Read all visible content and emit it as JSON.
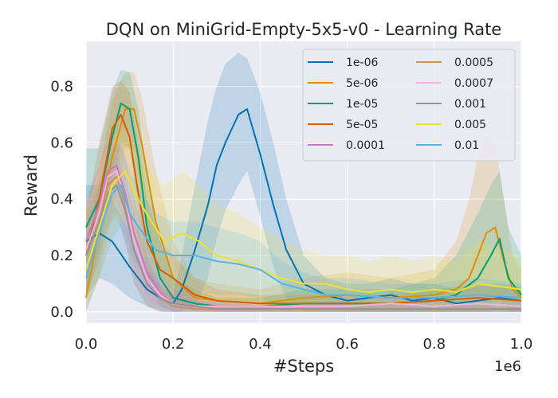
{
  "chart_data": {
    "type": "line",
    "title": "DQN on MiniGrid-Empty-5x5-v0 - Learning Rate",
    "xlabel": "#Steps",
    "ylabel": "Reward",
    "x_scale_label": "1e6",
    "xlim": [
      0,
      1.0
    ],
    "ylim": [
      -0.04,
      0.96
    ],
    "xticks": [
      0.0,
      0.2,
      0.4,
      0.6,
      0.8,
      1.0
    ],
    "xtick_labels": [
      "0.0",
      "0.2",
      "0.4",
      "0.6",
      "0.8",
      "1.0"
    ],
    "yticks": [
      0.0,
      0.2,
      0.4,
      0.6,
      0.8
    ],
    "ytick_labels": [
      "0.0",
      "0.2",
      "0.4",
      "0.6",
      "0.8"
    ],
    "grid": true,
    "legend_position": "top-right",
    "series": [
      {
        "name": "1e-06",
        "color": "#0173b2",
        "x": [
          0,
          0.03,
          0.06,
          0.1,
          0.14,
          0.18,
          0.2,
          0.22,
          0.25,
          0.28,
          0.3,
          0.32,
          0.35,
          0.37,
          0.4,
          0.43,
          0.46,
          0.5,
          0.55,
          0.6,
          0.65,
          0.7,
          0.75,
          0.8,
          0.85,
          0.9,
          0.95,
          1.0
        ],
        "y": [
          0.25,
          0.28,
          0.25,
          0.16,
          0.08,
          0.04,
          0.03,
          0.08,
          0.22,
          0.38,
          0.52,
          0.6,
          0.7,
          0.72,
          0.56,
          0.38,
          0.22,
          0.1,
          0.06,
          0.04,
          0.05,
          0.06,
          0.04,
          0.05,
          0.03,
          0.04,
          0.05,
          0.04
        ],
        "upper": [
          0.45,
          0.45,
          0.4,
          0.28,
          0.15,
          0.08,
          0.06,
          0.2,
          0.45,
          0.68,
          0.8,
          0.88,
          0.92,
          0.9,
          0.78,
          0.6,
          0.4,
          0.2,
          0.12,
          0.1,
          0.1,
          0.12,
          0.1,
          0.1,
          0.08,
          0.09,
          0.1,
          0.09
        ],
        "lower": [
          0.05,
          0.12,
          0.1,
          0.05,
          0.02,
          0.0,
          0.0,
          0.0,
          0.02,
          0.12,
          0.26,
          0.36,
          0.45,
          0.5,
          0.34,
          0.16,
          0.05,
          0.0,
          0.0,
          0.0,
          0.0,
          0.0,
          0.0,
          0.0,
          0.0,
          0.0,
          0.0,
          0.0
        ]
      },
      {
        "name": "5e-06",
        "color": "#de8f05",
        "x": [
          0,
          0.03,
          0.06,
          0.09,
          0.11,
          0.13,
          0.16,
          0.2,
          0.25,
          0.3,
          0.4,
          0.5,
          0.6,
          0.7,
          0.8,
          0.85,
          0.88,
          0.9,
          0.92,
          0.94,
          0.96,
          0.98,
          1.0
        ],
        "y": [
          0.05,
          0.3,
          0.55,
          0.72,
          0.72,
          0.58,
          0.32,
          0.12,
          0.05,
          0.04,
          0.03,
          0.05,
          0.06,
          0.05,
          0.06,
          0.08,
          0.12,
          0.2,
          0.28,
          0.3,
          0.18,
          0.08,
          0.05
        ],
        "upper": [
          0.15,
          0.5,
          0.75,
          0.85,
          0.85,
          0.75,
          0.5,
          0.25,
          0.12,
          0.1,
          0.08,
          0.12,
          0.14,
          0.12,
          0.15,
          0.25,
          0.4,
          0.55,
          0.62,
          0.6,
          0.4,
          0.2,
          0.15
        ],
        "lower": [
          0.0,
          0.12,
          0.35,
          0.58,
          0.58,
          0.4,
          0.15,
          0.03,
          0.0,
          0.0,
          0.0,
          0.0,
          0.0,
          0.0,
          0.0,
          0.0,
          0.0,
          0.0,
          0.0,
          0.05,
          0.0,
          0.0,
          0.0
        ]
      },
      {
        "name": "1e-05",
        "color": "#029e73",
        "x": [
          0,
          0.03,
          0.06,
          0.08,
          0.1,
          0.12,
          0.14,
          0.17,
          0.2,
          0.25,
          0.3,
          0.4,
          0.5,
          0.6,
          0.7,
          0.8,
          0.85,
          0.9,
          0.93,
          0.95,
          0.97,
          1.0
        ],
        "y": [
          0.3,
          0.4,
          0.62,
          0.74,
          0.72,
          0.55,
          0.3,
          0.12,
          0.05,
          0.03,
          0.02,
          0.02,
          0.03,
          0.03,
          0.03,
          0.04,
          0.06,
          0.12,
          0.2,
          0.26,
          0.12,
          0.06
        ],
        "upper": [
          0.58,
          0.58,
          0.78,
          0.86,
          0.85,
          0.72,
          0.48,
          0.25,
          0.12,
          0.08,
          0.05,
          0.05,
          0.08,
          0.08,
          0.08,
          0.12,
          0.2,
          0.35,
          0.45,
          0.5,
          0.3,
          0.2
        ],
        "lower": [
          0.05,
          0.22,
          0.45,
          0.6,
          0.58,
          0.38,
          0.12,
          0.02,
          0.0,
          0.0,
          0.0,
          0.0,
          0.0,
          0.0,
          0.0,
          0.0,
          0.0,
          0.0,
          0.0,
          0.05,
          0.0,
          0.0
        ]
      },
      {
        "name": "5e-05",
        "color": "#d55e00",
        "x": [
          0,
          0.03,
          0.06,
          0.08,
          0.1,
          0.12,
          0.14,
          0.17,
          0.2,
          0.25,
          0.3,
          0.4,
          0.5,
          0.6,
          0.7,
          0.8,
          0.9,
          1.0
        ],
        "y": [
          0.2,
          0.4,
          0.65,
          0.7,
          0.62,
          0.42,
          0.25,
          0.15,
          0.12,
          0.06,
          0.04,
          0.03,
          0.03,
          0.03,
          0.03,
          0.04,
          0.05,
          0.04
        ],
        "upper": [
          0.35,
          0.6,
          0.8,
          0.82,
          0.78,
          0.6,
          0.4,
          0.25,
          0.2,
          0.12,
          0.08,
          0.06,
          0.06,
          0.06,
          0.06,
          0.08,
          0.1,
          0.08
        ],
        "lower": [
          0.05,
          0.22,
          0.48,
          0.55,
          0.45,
          0.25,
          0.12,
          0.06,
          0.04,
          0.01,
          0.0,
          0.0,
          0.0,
          0.0,
          0.0,
          0.0,
          0.0,
          0.0
        ]
      },
      {
        "name": "0.0001",
        "color": "#cc78bc",
        "x": [
          0,
          0.03,
          0.05,
          0.07,
          0.09,
          0.11,
          0.14,
          0.17,
          0.2,
          0.25,
          0.3,
          0.4,
          0.5,
          0.6,
          0.7,
          0.8,
          0.9,
          1.0
        ],
        "y": [
          0.25,
          0.38,
          0.5,
          0.52,
          0.42,
          0.28,
          0.14,
          0.07,
          0.03,
          0.02,
          0.01,
          0.01,
          0.01,
          0.01,
          0.01,
          0.01,
          0.01,
          0.01
        ],
        "upper": [
          0.4,
          0.52,
          0.62,
          0.62,
          0.55,
          0.4,
          0.25,
          0.14,
          0.08,
          0.05,
          0.03,
          0.02,
          0.02,
          0.02,
          0.02,
          0.02,
          0.02,
          0.02
        ],
        "lower": [
          0.1,
          0.25,
          0.38,
          0.4,
          0.3,
          0.16,
          0.05,
          0.02,
          0.0,
          0.0,
          0.0,
          0.0,
          0.0,
          0.0,
          0.0,
          0.0,
          0.0,
          0.0
        ]
      },
      {
        "name": "0.0005",
        "color": "#ca9161",
        "x": [
          0,
          0.03,
          0.05,
          0.07,
          0.09,
          0.11,
          0.14,
          0.17,
          0.2,
          0.25,
          0.3,
          0.4,
          0.5,
          0.6,
          0.7,
          0.8,
          0.9,
          1.0
        ],
        "y": [
          0.2,
          0.32,
          0.45,
          0.48,
          0.38,
          0.22,
          0.1,
          0.05,
          0.02,
          0.01,
          0.01,
          0.01,
          0.01,
          0.01,
          0.01,
          0.01,
          0.01,
          0.01
        ],
        "upper": [
          0.35,
          0.48,
          0.58,
          0.6,
          0.5,
          0.35,
          0.2,
          0.1,
          0.05,
          0.03,
          0.02,
          0.02,
          0.02,
          0.02,
          0.02,
          0.02,
          0.02,
          0.02
        ],
        "lower": [
          0.05,
          0.18,
          0.32,
          0.35,
          0.25,
          0.1,
          0.02,
          0.0,
          0.0,
          0.0,
          0.0,
          0.0,
          0.0,
          0.0,
          0.0,
          0.0,
          0.0,
          0.0
        ]
      },
      {
        "name": "0.0007",
        "color": "#fbafe4",
        "x": [
          0,
          0.03,
          0.05,
          0.07,
          0.09,
          0.11,
          0.14,
          0.17,
          0.2,
          0.25,
          0.3,
          0.4,
          0.5,
          0.6,
          0.7,
          0.8,
          0.9,
          1.0
        ],
        "y": [
          0.22,
          0.35,
          0.48,
          0.5,
          0.4,
          0.25,
          0.12,
          0.06,
          0.03,
          0.02,
          0.02,
          0.02,
          0.02,
          0.02,
          0.03,
          0.02,
          0.03,
          0.02
        ],
        "upper": [
          0.38,
          0.5,
          0.6,
          0.62,
          0.52,
          0.38,
          0.22,
          0.12,
          0.07,
          0.05,
          0.04,
          0.04,
          0.04,
          0.05,
          0.06,
          0.05,
          0.06,
          0.05
        ],
        "lower": [
          0.06,
          0.2,
          0.35,
          0.38,
          0.28,
          0.12,
          0.03,
          0.0,
          0.0,
          0.0,
          0.0,
          0.0,
          0.0,
          0.0,
          0.0,
          0.0,
          0.0,
          0.0
        ]
      },
      {
        "name": "0.001",
        "color": "#949494",
        "x": [
          0,
          0.03,
          0.05,
          0.07,
          0.09,
          0.11,
          0.14,
          0.17,
          0.2,
          0.25,
          0.3,
          0.4,
          0.5,
          0.6,
          0.7,
          0.8,
          0.9,
          1.0
        ],
        "y": [
          0.2,
          0.32,
          0.42,
          0.45,
          0.36,
          0.22,
          0.1,
          0.05,
          0.03,
          0.02,
          0.01,
          0.01,
          0.01,
          0.01,
          0.01,
          0.01,
          0.01,
          0.01
        ],
        "upper": [
          0.35,
          0.45,
          0.55,
          0.56,
          0.48,
          0.35,
          0.2,
          0.1,
          0.06,
          0.04,
          0.03,
          0.02,
          0.02,
          0.02,
          0.02,
          0.02,
          0.02,
          0.02
        ],
        "lower": [
          0.05,
          0.18,
          0.3,
          0.34,
          0.24,
          0.1,
          0.02,
          0.0,
          0.0,
          0.0,
          0.0,
          0.0,
          0.0,
          0.0,
          0.0,
          0.0,
          0.0,
          0.0
        ]
      },
      {
        "name": "0.005",
        "color": "#ece133",
        "x": [
          0,
          0.03,
          0.06,
          0.09,
          0.12,
          0.15,
          0.18,
          0.22,
          0.26,
          0.3,
          0.35,
          0.4,
          0.45,
          0.5,
          0.55,
          0.6,
          0.65,
          0.7,
          0.75,
          0.8,
          0.85,
          0.9,
          0.95,
          1.0
        ],
        "y": [
          0.15,
          0.3,
          0.45,
          0.5,
          0.4,
          0.32,
          0.25,
          0.28,
          0.25,
          0.2,
          0.18,
          0.15,
          0.12,
          0.1,
          0.1,
          0.08,
          0.07,
          0.08,
          0.07,
          0.08,
          0.07,
          0.1,
          0.09,
          0.08
        ],
        "upper": [
          0.35,
          0.5,
          0.62,
          0.65,
          0.58,
          0.5,
          0.45,
          0.5,
          0.45,
          0.38,
          0.35,
          0.3,
          0.26,
          0.22,
          0.2,
          0.2,
          0.18,
          0.2,
          0.18,
          0.2,
          0.18,
          0.25,
          0.22,
          0.2
        ],
        "lower": [
          0.02,
          0.12,
          0.28,
          0.34,
          0.22,
          0.15,
          0.08,
          0.08,
          0.06,
          0.04,
          0.03,
          0.02,
          0.01,
          0.0,
          0.0,
          0.0,
          0.0,
          0.0,
          0.0,
          0.0,
          0.0,
          0.0,
          0.0,
          0.0
        ]
      },
      {
        "name": "0.01",
        "color": "#56b4e9",
        "x": [
          0,
          0.03,
          0.06,
          0.08,
          0.1,
          0.13,
          0.16,
          0.2,
          0.25,
          0.3,
          0.35,
          0.4,
          0.45,
          0.5,
          0.55,
          0.6,
          0.7,
          0.8,
          0.9,
          1.0
        ],
        "y": [
          0.12,
          0.28,
          0.42,
          0.45,
          0.35,
          0.28,
          0.22,
          0.2,
          0.2,
          0.18,
          0.17,
          0.15,
          0.1,
          0.08,
          0.06,
          0.06,
          0.05,
          0.05,
          0.06,
          0.05
        ],
        "upper": [
          0.28,
          0.45,
          0.58,
          0.6,
          0.5,
          0.42,
          0.35,
          0.32,
          0.32,
          0.3,
          0.28,
          0.25,
          0.18,
          0.14,
          0.12,
          0.12,
          0.1,
          0.1,
          0.12,
          0.1
        ],
        "lower": [
          0.0,
          0.12,
          0.26,
          0.3,
          0.2,
          0.14,
          0.09,
          0.08,
          0.08,
          0.06,
          0.06,
          0.05,
          0.02,
          0.01,
          0.0,
          0.0,
          0.0,
          0.0,
          0.0,
          0.0
        ]
      }
    ]
  }
}
